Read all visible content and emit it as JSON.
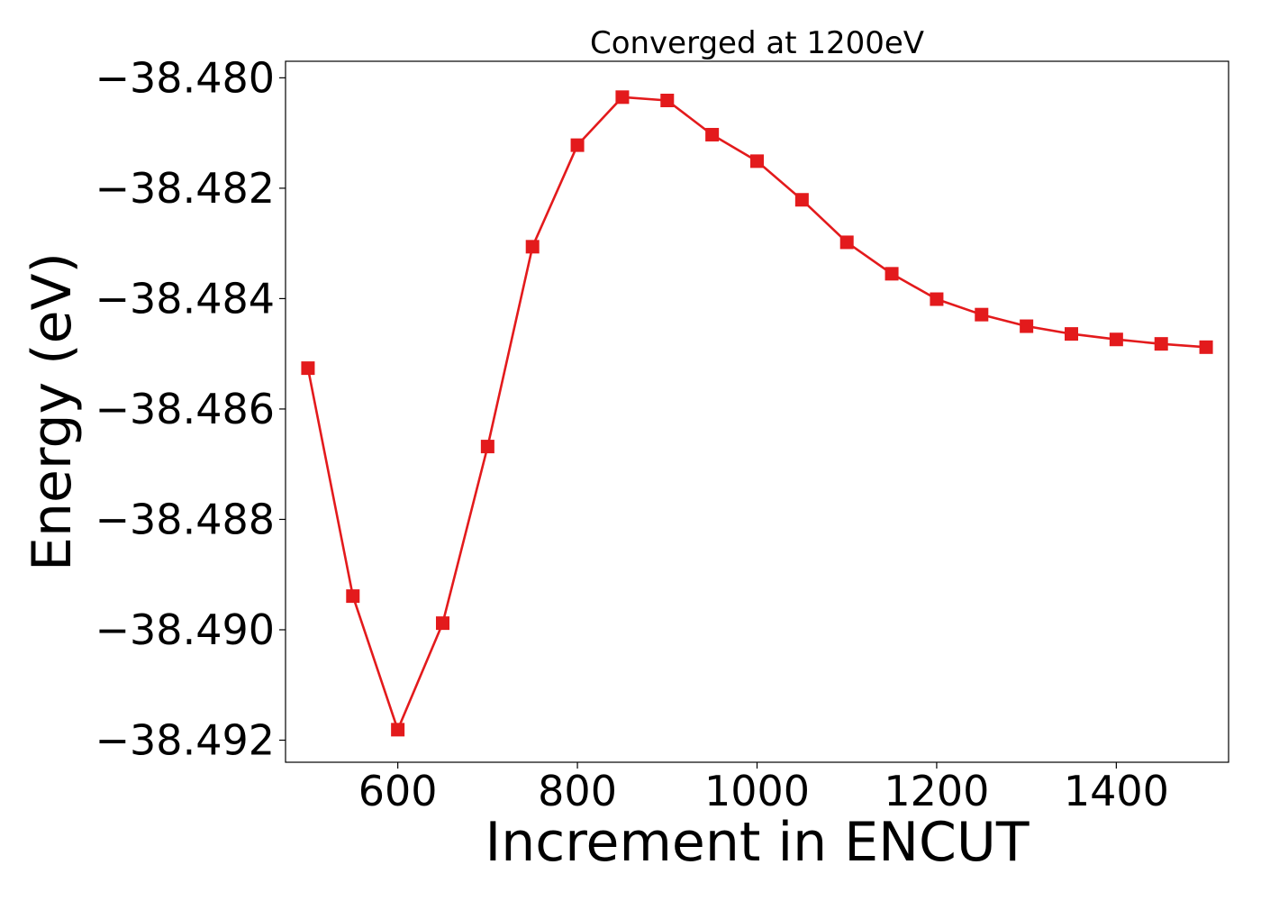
{
  "chart_data": {
    "type": "line",
    "title": "Converged at 1200eV",
    "xlabel": "Increment in ENCUT",
    "ylabel": "Energy (eV)",
    "xlim": [
      475,
      1525
    ],
    "ylim": [
      -38.4924,
      -38.4797
    ],
    "xticks": [
      600,
      800,
      1000,
      1200,
      1400
    ],
    "xtick_labels": [
      "600",
      "800",
      "1000",
      "1200",
      "1400"
    ],
    "yticks": [
      -38.492,
      -38.49,
      -38.488,
      -38.486,
      -38.484,
      -38.482,
      -38.48
    ],
    "ytick_labels": [
      "−38.492",
      "−38.490",
      "−38.488",
      "−38.486",
      "−38.484",
      "−38.482",
      "−38.480"
    ],
    "grid": false,
    "series": [
      {
        "color": "#e31a1c",
        "marker": "square",
        "x": [
          500,
          550,
          600,
          650,
          700,
          750,
          800,
          850,
          900,
          950,
          1000,
          1050,
          1100,
          1150,
          1200,
          1250,
          1300,
          1350,
          1400,
          1450,
          1500
        ],
        "y": [
          -38.48526,
          -38.48939,
          -38.49181,
          -38.48988,
          -38.48668,
          -38.48306,
          -38.48122,
          -38.48035,
          -38.48041,
          -38.48103,
          -38.48151,
          -38.48221,
          -38.48298,
          -38.48355,
          -38.48401,
          -38.48429,
          -38.4845,
          -38.48464,
          -38.48474,
          -38.48482,
          -38.48488
        ]
      }
    ]
  }
}
